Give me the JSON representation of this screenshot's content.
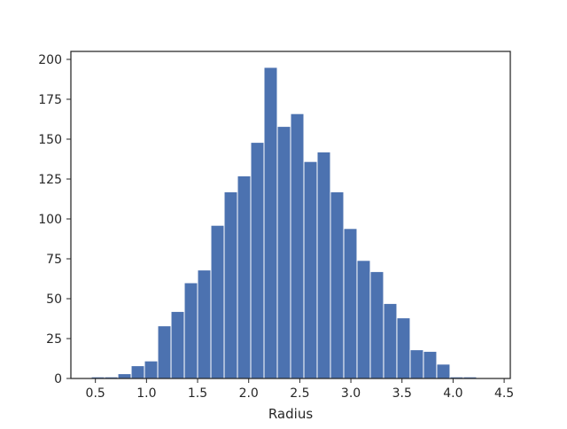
{
  "chart_data": {
    "type": "bar",
    "subtype": "histogram",
    "xlabel": "Radius",
    "ylabel": "",
    "xlim": [
      0.26,
      4.56
    ],
    "ylim": [
      0,
      205
    ],
    "x_ticks": [
      0.5,
      1.0,
      1.5,
      2.0,
      2.5,
      3.0,
      3.5,
      4.0,
      4.5
    ],
    "x_tick_labels": [
      "0.5",
      "1.0",
      "1.5",
      "2.0",
      "2.5",
      "3.0",
      "3.5",
      "4.0",
      "4.5"
    ],
    "y_ticks": [
      0,
      25,
      50,
      75,
      100,
      125,
      150,
      175,
      200
    ],
    "y_tick_labels": [
      "0",
      "25",
      "50",
      "75",
      "100",
      "125",
      "150",
      "175",
      "200"
    ],
    "bins": [
      {
        "x0": 0.46,
        "x1": 0.59,
        "count": 1
      },
      {
        "x0": 0.59,
        "x1": 0.72,
        "count": 1
      },
      {
        "x0": 0.72,
        "x1": 0.85,
        "count": 3
      },
      {
        "x0": 0.85,
        "x1": 0.98,
        "count": 8
      },
      {
        "x0": 0.98,
        "x1": 1.11,
        "count": 11
      },
      {
        "x0": 1.11,
        "x1": 1.24,
        "count": 33
      },
      {
        "x0": 1.24,
        "x1": 1.37,
        "count": 42
      },
      {
        "x0": 1.37,
        "x1": 1.5,
        "count": 60
      },
      {
        "x0": 1.5,
        "x1": 1.63,
        "count": 68
      },
      {
        "x0": 1.63,
        "x1": 1.76,
        "count": 96
      },
      {
        "x0": 1.76,
        "x1": 1.89,
        "count": 117
      },
      {
        "x0": 1.89,
        "x1": 2.02,
        "count": 127
      },
      {
        "x0": 2.02,
        "x1": 2.15,
        "count": 148
      },
      {
        "x0": 2.15,
        "x1": 2.28,
        "count": 195
      },
      {
        "x0": 2.28,
        "x1": 2.41,
        "count": 158
      },
      {
        "x0": 2.41,
        "x1": 2.54,
        "count": 166
      },
      {
        "x0": 2.54,
        "x1": 2.67,
        "count": 136
      },
      {
        "x0": 2.67,
        "x1": 2.8,
        "count": 142
      },
      {
        "x0": 2.8,
        "x1": 2.93,
        "count": 117
      },
      {
        "x0": 2.93,
        "x1": 3.06,
        "count": 94
      },
      {
        "x0": 3.06,
        "x1": 3.19,
        "count": 74
      },
      {
        "x0": 3.19,
        "x1": 3.32,
        "count": 67
      },
      {
        "x0": 3.32,
        "x1": 3.45,
        "count": 47
      },
      {
        "x0": 3.45,
        "x1": 3.58,
        "count": 38
      },
      {
        "x0": 3.58,
        "x1": 3.71,
        "count": 18
      },
      {
        "x0": 3.71,
        "x1": 3.84,
        "count": 17
      },
      {
        "x0": 3.84,
        "x1": 3.97,
        "count": 9
      },
      {
        "x0": 3.97,
        "x1": 4.1,
        "count": 1
      },
      {
        "x0": 4.1,
        "x1": 4.23,
        "count": 1
      }
    ],
    "bar_color": "#4c72b0",
    "bar_edge_color": "#ffffff",
    "grid": false,
    "legend": "none"
  }
}
